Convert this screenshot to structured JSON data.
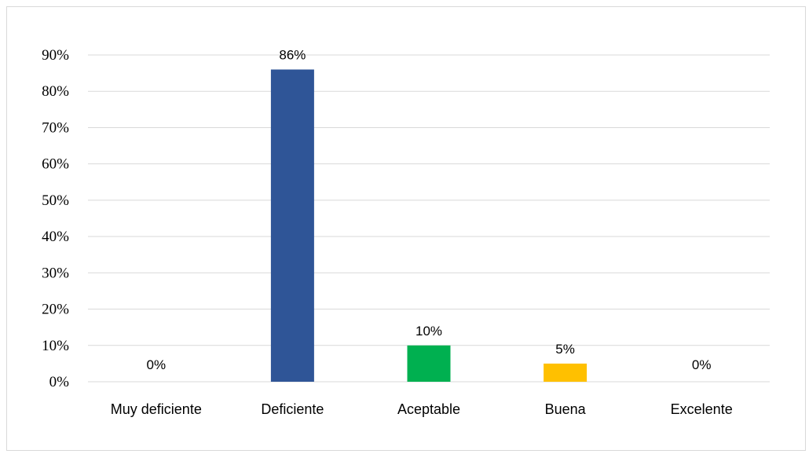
{
  "chart_data": {
    "type": "bar",
    "title": "",
    "xlabel": "",
    "ylabel": "",
    "categories": [
      "Muy deficiente",
      "Deficiente",
      "Aceptable",
      "Buena",
      "Excelente"
    ],
    "values": [
      0,
      86,
      10,
      5,
      0
    ],
    "data_labels": [
      "0%",
      "86%",
      "10%",
      "5%",
      "0%"
    ],
    "bar_colors": [
      "#2f5597",
      "#2f5597",
      "#00b050",
      "#ffc000",
      "#2f5597"
    ],
    "ylim": [
      0,
      90
    ],
    "yticks": [
      0,
      10,
      20,
      30,
      40,
      50,
      60,
      70,
      80,
      90
    ],
    "ytick_labels": [
      "0%",
      "10%",
      "20%",
      "30%",
      "40%",
      "50%",
      "60%",
      "70%",
      "80%",
      "90%"
    ],
    "grid": true,
    "gridline_color": "#d9d9d9",
    "legend": "none"
  }
}
